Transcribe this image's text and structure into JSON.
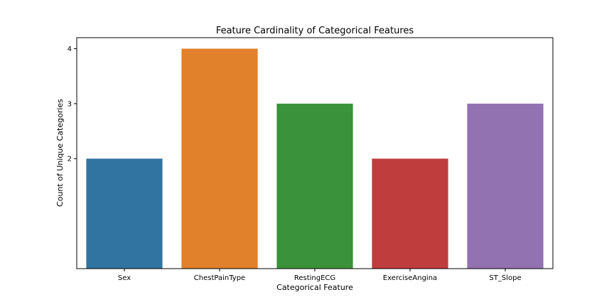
{
  "chart_data": {
    "type": "bar",
    "title": "Feature Cardinality of Categorical Features",
    "xlabel": "Categorical Feature",
    "ylabel": "Count of Unique Categories",
    "categories": [
      "Sex",
      "ChestPainType",
      "RestingECG",
      "ExerciseAngina",
      "ST_Slope"
    ],
    "values": [
      2,
      4,
      3,
      2,
      3
    ],
    "colors": [
      "#3274a1",
      "#e1812c",
      "#3a923a",
      "#c03d3e",
      "#9372b2"
    ],
    "yticks": [
      2,
      3,
      4
    ],
    "ylim": [
      0,
      4.2
    ],
    "grid": false,
    "legend": false
  }
}
